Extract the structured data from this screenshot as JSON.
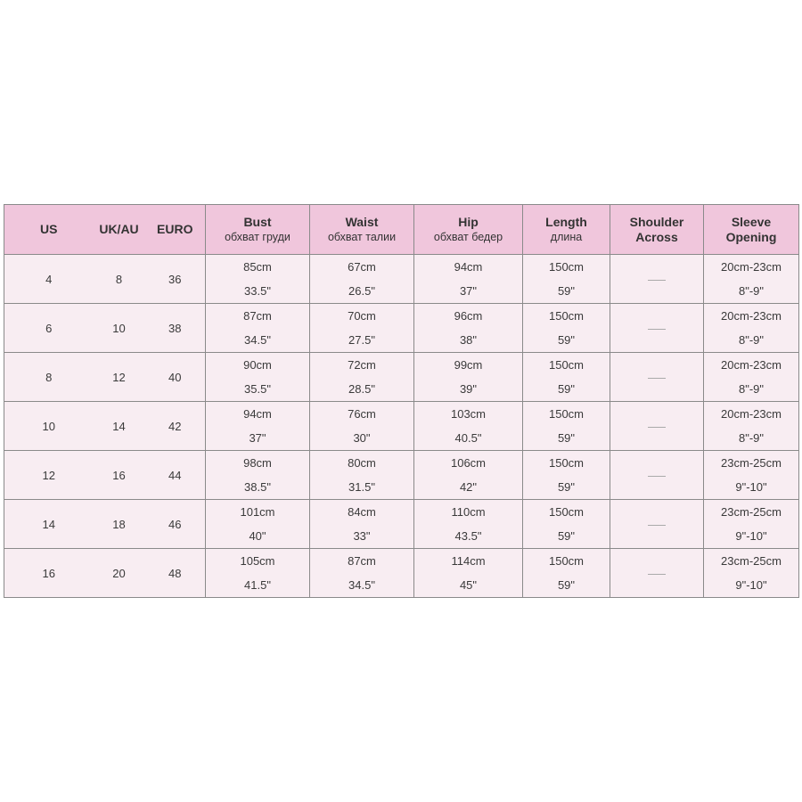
{
  "headers": [
    {
      "title": "US",
      "sub": ""
    },
    {
      "title": "UK/AU",
      "sub": ""
    },
    {
      "title": "EURO",
      "sub": ""
    },
    {
      "title": "Bust",
      "sub": "обхват груди"
    },
    {
      "title": "Waist",
      "sub": "обхват талии"
    },
    {
      "title": "Hip",
      "sub": "обхват бедер"
    },
    {
      "title": "Length",
      "sub": "длина"
    },
    {
      "title": "Shoulder",
      "sub": "Across"
    },
    {
      "title": "Sleeve",
      "sub": "Opening"
    }
  ],
  "rows": [
    {
      "us": "4",
      "uk": "8",
      "euro": "36",
      "bust": [
        "85cm",
        "33.5\""
      ],
      "waist": [
        "67cm",
        "26.5\""
      ],
      "hip": [
        "94cm",
        "37\""
      ],
      "length": [
        "150cm",
        "59\""
      ],
      "shoulder": "—",
      "sleeve": [
        "20cm-23cm",
        "8\"-9\""
      ]
    },
    {
      "us": "6",
      "uk": "10",
      "euro": "38",
      "bust": [
        "87cm",
        "34.5\""
      ],
      "waist": [
        "70cm",
        "27.5\""
      ],
      "hip": [
        "96cm",
        "38\""
      ],
      "length": [
        "150cm",
        "59\""
      ],
      "shoulder": "—",
      "sleeve": [
        "20cm-23cm",
        "8\"-9\""
      ]
    },
    {
      "us": "8",
      "uk": "12",
      "euro": "40",
      "bust": [
        "90cm",
        "35.5\""
      ],
      "waist": [
        "72cm",
        "28.5\""
      ],
      "hip": [
        "99cm",
        "39\""
      ],
      "length": [
        "150cm",
        "59\""
      ],
      "shoulder": "—",
      "sleeve": [
        "20cm-23cm",
        "8\"-9\""
      ]
    },
    {
      "us": "10",
      "uk": "14",
      "euro": "42",
      "bust": [
        "94cm",
        "37\""
      ],
      "waist": [
        "76cm",
        "30\""
      ],
      "hip": [
        "103cm",
        "40.5\""
      ],
      "length": [
        "150cm",
        "59\""
      ],
      "shoulder": "—",
      "sleeve": [
        "20cm-23cm",
        "8\"-9\""
      ]
    },
    {
      "us": "12",
      "uk": "16",
      "euro": "44",
      "bust": [
        "98cm",
        "38.5\""
      ],
      "waist": [
        "80cm",
        "31.5\""
      ],
      "hip": [
        "106cm",
        "42\""
      ],
      "length": [
        "150cm",
        "59\""
      ],
      "shoulder": "—",
      "sleeve": [
        "23cm-25cm",
        "9\"-10\""
      ]
    },
    {
      "us": "14",
      "uk": "18",
      "euro": "46",
      "bust": [
        "101cm",
        "40\""
      ],
      "waist": [
        "84cm",
        "33\""
      ],
      "hip": [
        "110cm",
        "43.5\""
      ],
      "length": [
        "150cm",
        "59\""
      ],
      "shoulder": "—",
      "sleeve": [
        "23cm-25cm",
        "9\"-10\""
      ]
    },
    {
      "us": "16",
      "uk": "20",
      "euro": "48",
      "bust": [
        "105cm",
        "41.5\""
      ],
      "waist": [
        "87cm",
        "34.5\""
      ],
      "hip": [
        "114cm",
        "45\""
      ],
      "length": [
        "150cm",
        "59\""
      ],
      "shoulder": "—",
      "sleeve": [
        "23cm-25cm",
        "9\"-10\""
      ]
    }
  ]
}
